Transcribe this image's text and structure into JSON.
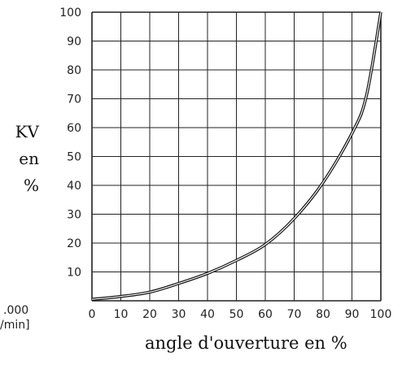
{
  "chart_data": {
    "type": "line",
    "title": "",
    "xlabel": "angle d'ouverture en %",
    "ylabel_lines": [
      "KV",
      "en",
      "%"
    ],
    "xlim": [
      0,
      100
    ],
    "ylim": [
      0,
      100
    ],
    "x_ticks": [
      0,
      10,
      20,
      30,
      40,
      50,
      60,
      70,
      80,
      90,
      100
    ],
    "y_ticks": [
      10,
      20,
      30,
      40,
      50,
      60,
      70,
      80,
      90,
      100
    ],
    "grid": true,
    "series": [
      {
        "x": [
          0,
          10,
          20,
          30,
          40,
          50,
          60,
          70,
          80,
          90,
          95,
          100
        ],
        "y": [
          0.5,
          1.5,
          3,
          6,
          9.5,
          14,
          19.5,
          28.5,
          41,
          58,
          71,
          100
        ]
      }
    ]
  },
  "left_cut_text": [
    ".000",
    "/min]"
  ],
  "colors": {
    "line": "#111111",
    "grid": "#222222",
    "text": "#222222"
  }
}
